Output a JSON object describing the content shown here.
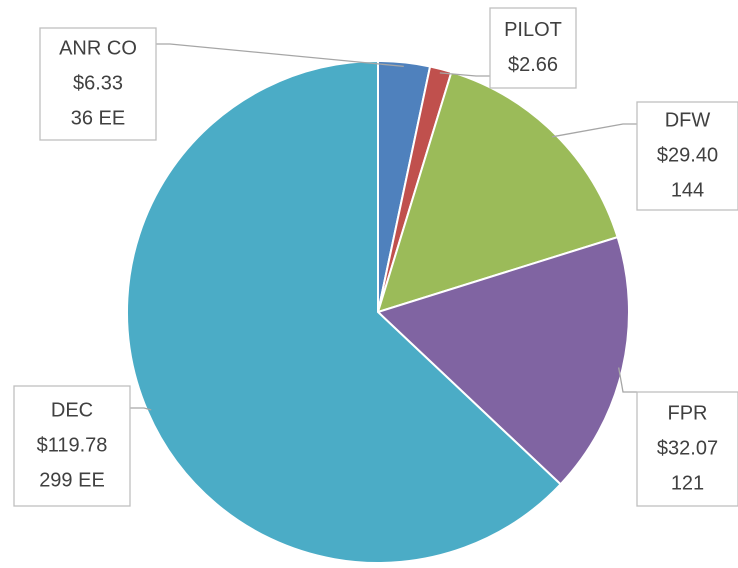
{
  "chart_data": {
    "type": "pie",
    "categories": [
      "ANR CO",
      "PILOT",
      "DFW",
      "FPR",
      "DEC"
    ],
    "values": [
      6.33,
      2.66,
      29.4,
      32.07,
      119.78
    ],
    "value_labels": [
      "$6.33",
      "$2.66",
      "$29.40",
      "$32.07",
      "$119.78"
    ],
    "counts": [
      "36 EE",
      null,
      "144",
      "121",
      "299 EE"
    ],
    "colors": [
      "#4f81bd",
      "#c0504d",
      "#9bbb59",
      "#8064a2",
      "#4bacc6"
    ]
  }
}
